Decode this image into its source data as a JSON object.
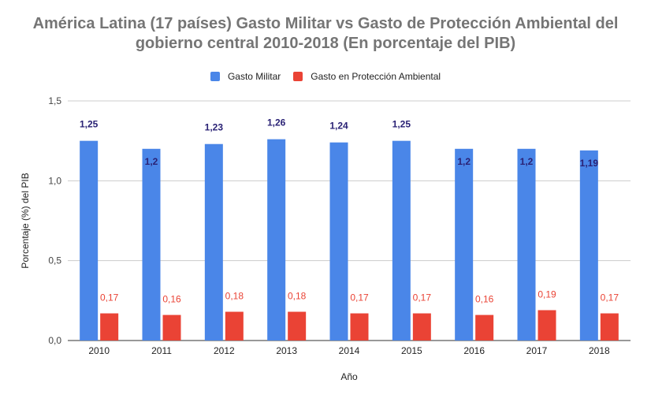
{
  "title_line1": "América Latina (17 países) Gasto Militar vs Gasto de Protección Ambiental del",
  "title_line2": "gobierno central 2010-2018 (En porcentaje del PIB)",
  "chart_data": {
    "type": "bar",
    "title": "América Latina (17 países) Gasto Militar vs Gasto de Protección Ambiental del gobierno central 2010-2018 (En porcentaje del PIB)",
    "xlabel": "Año",
    "ylabel": "Porcentaje (%) del PIB",
    "categories": [
      "2010",
      "2011",
      "2012",
      "2013",
      "2014",
      "2015",
      "2016",
      "2017",
      "2018"
    ],
    "ylim": [
      0,
      1.5
    ],
    "yticks": [
      "0,0",
      "0,5",
      "1,0",
      "1,5"
    ],
    "grid": true,
    "legend_position": "top",
    "series": [
      {
        "name": "Gasto Militar",
        "color": "#4a86e8",
        "label_color": "#2a2275",
        "values": [
          1.25,
          1.2,
          1.23,
          1.26,
          1.24,
          1.25,
          1.2,
          1.2,
          1.19
        ],
        "labels": [
          "1,25",
          "1,2",
          "1,23",
          "1,26",
          "1,24",
          "1,25",
          "1,2",
          "1,2",
          "1,19"
        ]
      },
      {
        "name": "Gasto en Protección Ambiental",
        "color": "#ea4335",
        "label_color": "#ea4335",
        "values": [
          0.17,
          0.16,
          0.18,
          0.18,
          0.17,
          0.17,
          0.16,
          0.19,
          0.17
        ],
        "labels": [
          "0,17",
          "0,16",
          "0,18",
          "0,18",
          "0,17",
          "0,17",
          "0,16",
          "0,19",
          "0,17"
        ]
      }
    ]
  }
}
